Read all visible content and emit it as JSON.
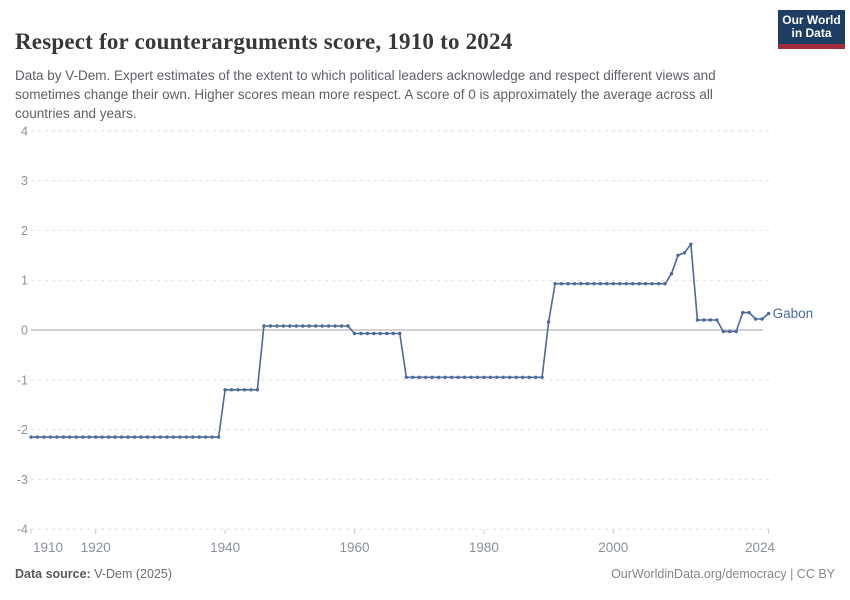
{
  "header": {
    "title": "Respect for counterarguments score, 1910 to 2024",
    "subtitle": "Data by V-Dem. Expert estimates of the extent to which political leaders acknowledge and respect different views and sometimes change their own. Higher scores mean more respect. A score of 0 is approximately the average across all countries and years.",
    "logo": {
      "line1": "Our World",
      "line2": "in Data"
    }
  },
  "chart_data": {
    "type": "line",
    "title": "Respect for counterarguments score, 1910 to 2024",
    "entity_label": "Gabon",
    "xlabel": "",
    "ylabel": "",
    "xlim": [
      1910,
      2024
    ],
    "ylim": [
      -4,
      4
    ],
    "x_ticks": [
      1910,
      1920,
      1940,
      1960,
      1980,
      2000,
      2024
    ],
    "y_ticks": [
      4,
      3,
      2,
      1,
      0,
      -1,
      -2,
      -3,
      -4
    ],
    "grid": "horizontal dashed gridlines, solid gray zero line, point marker on every year",
    "legend_position": "label at end of line",
    "series": [
      {
        "name": "Gabon",
        "color": "#4c6a9c",
        "segments": [
          {
            "from": 1910,
            "to": 1939,
            "value": -2.15
          },
          {
            "from": 1940,
            "to": 1945,
            "value": -1.2
          },
          {
            "from": 1946,
            "to": 1959,
            "value": 0.08
          },
          {
            "from": 1960,
            "to": 1967,
            "value": -0.07
          },
          {
            "from": 1968,
            "to": 1989,
            "value": -0.95
          },
          {
            "from": 1990,
            "to": 1990,
            "value": 0.16
          },
          {
            "from": 1991,
            "to": 2008,
            "value": 0.93
          },
          {
            "from": 2009,
            "to": 2009,
            "value": 1.13
          },
          {
            "from": 2010,
            "to": 2010,
            "value": 1.5
          },
          {
            "from": 2011,
            "to": 2011,
            "value": 1.55
          },
          {
            "from": 2012,
            "to": 2012,
            "value": 1.72
          },
          {
            "from": 2013,
            "to": 2016,
            "value": 0.2
          },
          {
            "from": 2017,
            "to": 2019,
            "value": -0.03
          },
          {
            "from": 2020,
            "to": 2021,
            "value": 0.35
          },
          {
            "from": 2022,
            "to": 2023,
            "value": 0.22
          },
          {
            "from": 2024,
            "to": 2024,
            "value": 0.33
          }
        ]
      }
    ],
    "colors": {
      "line": "#4c6a9c",
      "gridline": "#dcdee0",
      "zero_line": "#a5a5a5",
      "axis_text": "#8b9298",
      "tick_mark": "#c8c8c8"
    }
  },
  "footer": {
    "source_label": "Data source:",
    "source_value": " V-Dem (2025)",
    "attribution": "OurWorldinData.org/democracy | CC BY"
  }
}
